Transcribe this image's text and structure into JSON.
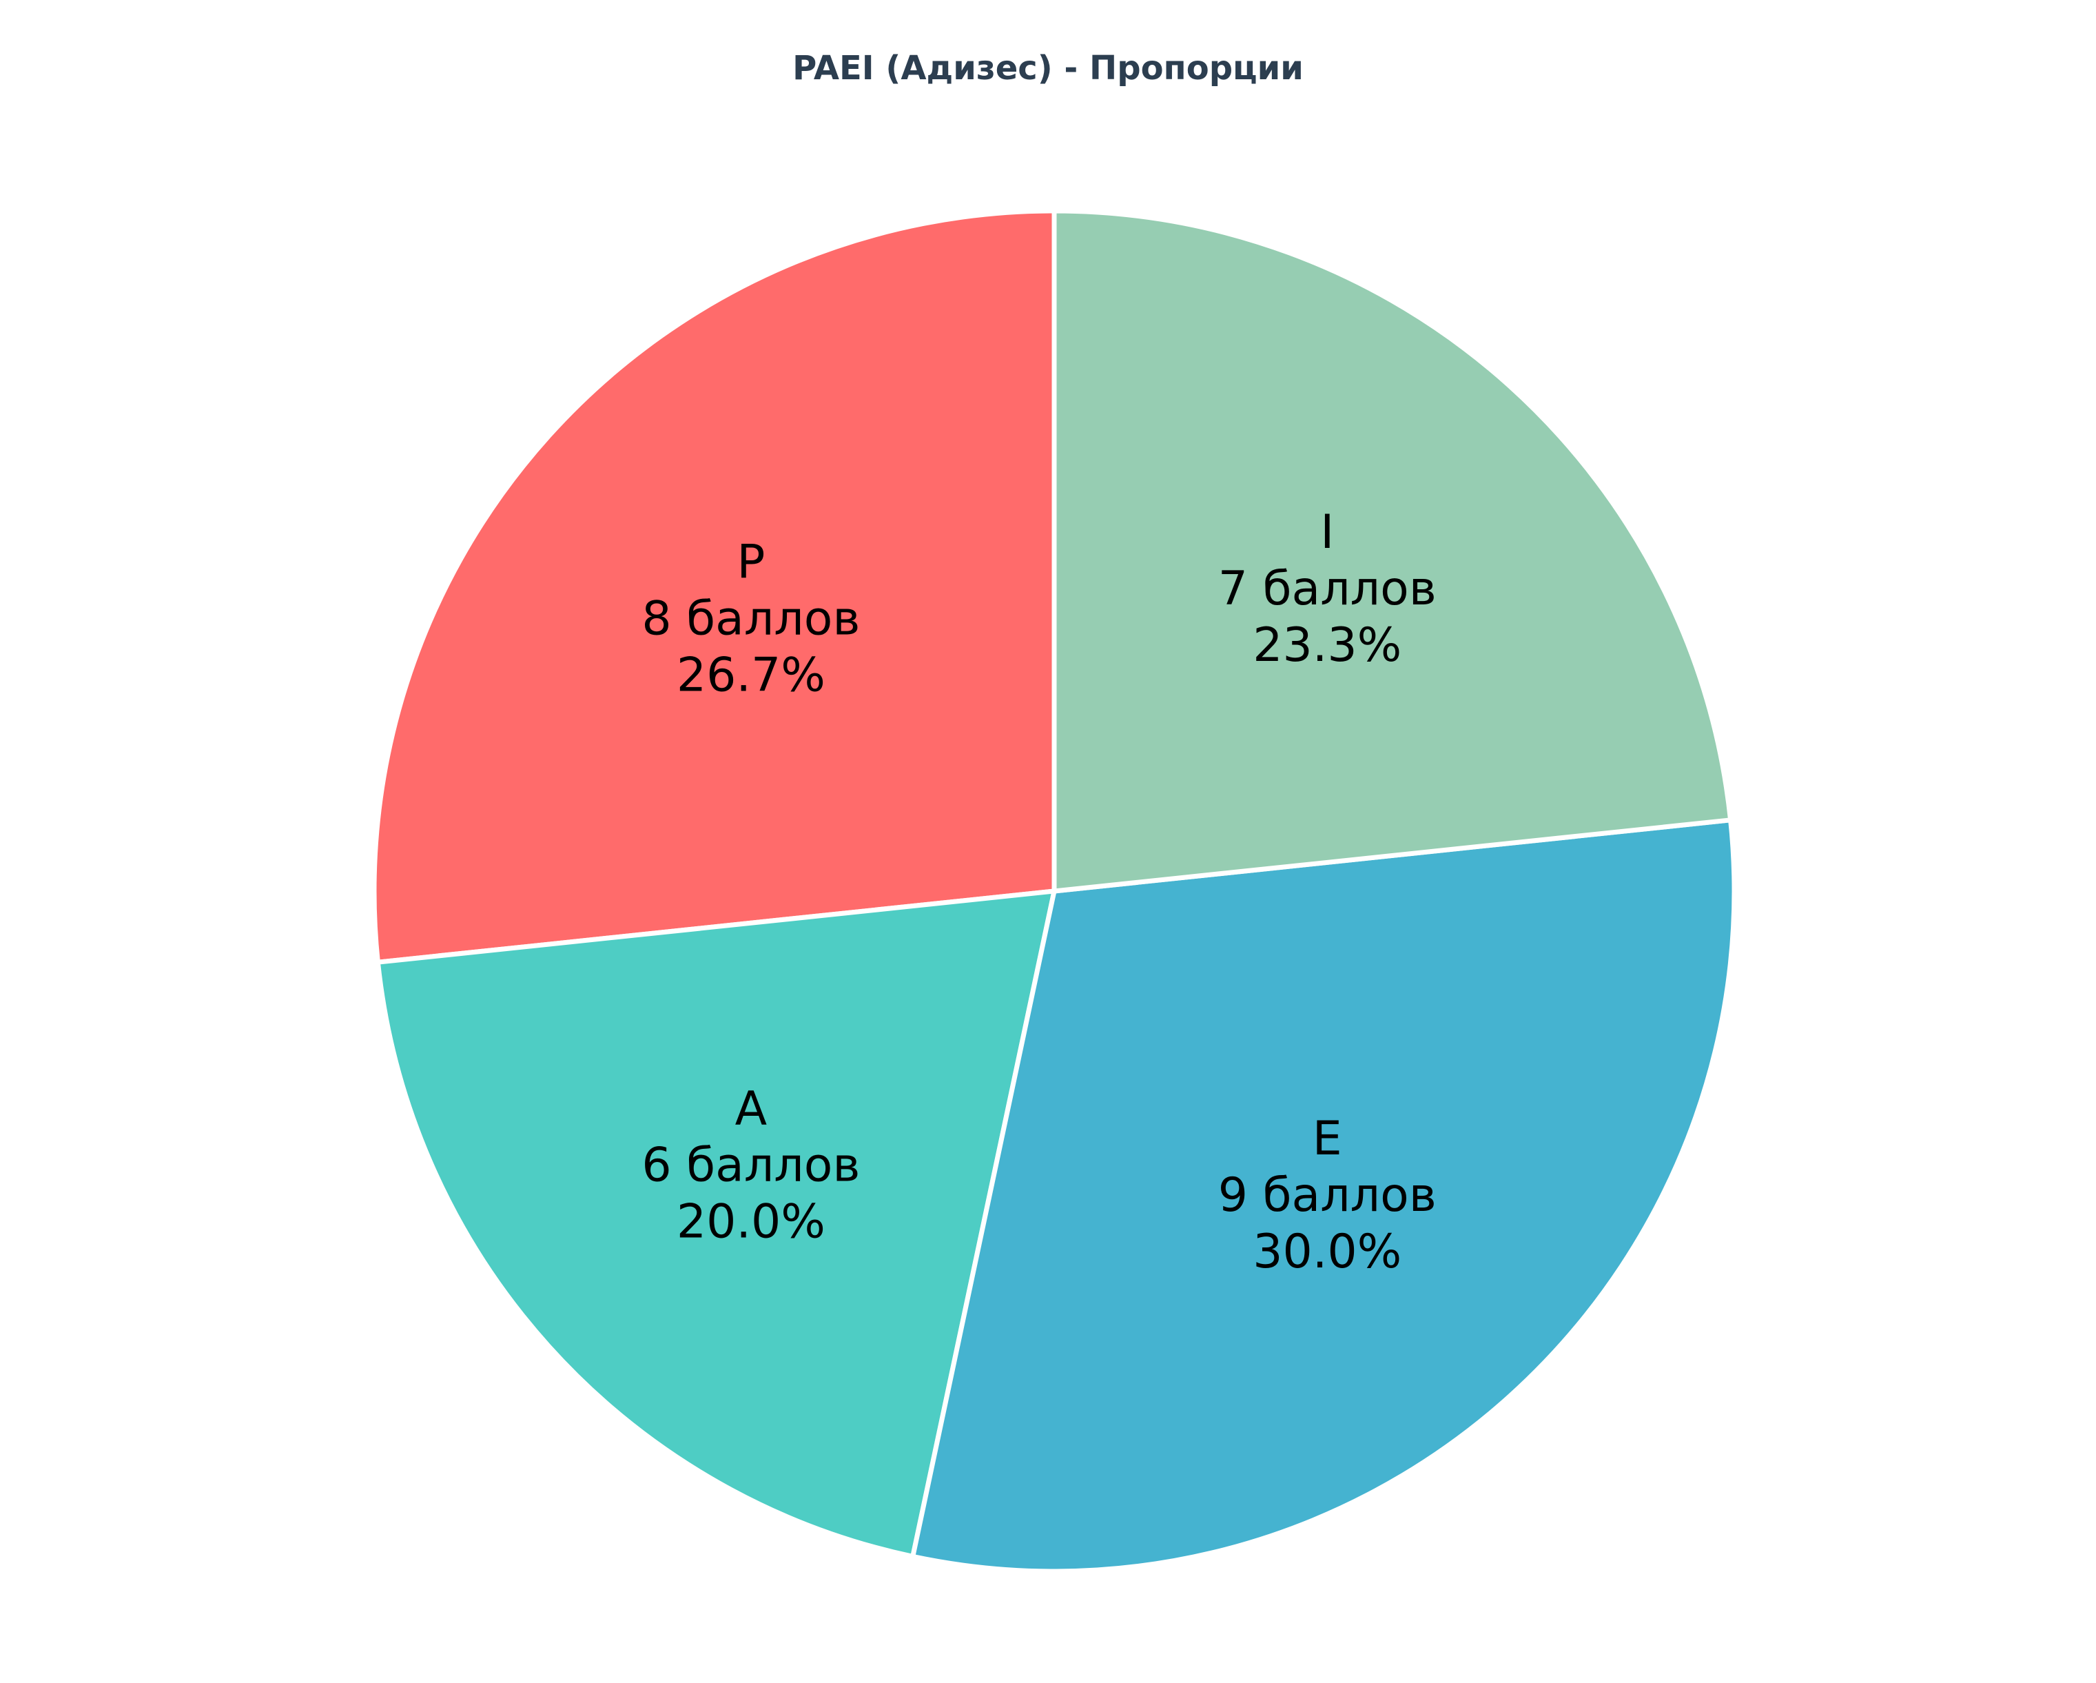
{
  "chart_data": {
    "type": "pie",
    "title": "PAEI (Адизес) - Пропорции",
    "categories": [
      "P",
      "A",
      "E",
      "I"
    ],
    "values": [
      8,
      6,
      9,
      7
    ],
    "value_labels": [
      "8 баллов",
      "6 баллов",
      "9 баллов",
      "7 баллов"
    ],
    "percent_labels": [
      "26.7%",
      "20.0%",
      "30.0%",
      "23.3%"
    ],
    "colors": [
      "#ff6b6b",
      "#4ecdc4",
      "#45b3d0",
      "#96cdb2"
    ],
    "start_angle_deg": 90,
    "direction": "counterclockwise",
    "legend": "none",
    "edge_color": "#ffffff"
  }
}
